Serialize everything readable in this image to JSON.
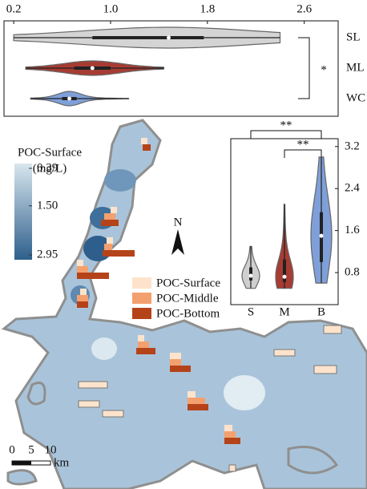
{
  "chart_data": [
    {
      "type": "violin",
      "orientation": "horizontal",
      "categories": [
        "SL",
        "ML",
        "WC"
      ],
      "colors": [
        "#d4d4d4",
        "#a63c33",
        "#7f9fd8"
      ],
      "min": [
        0.2,
        0.3,
        0.34
      ],
      "q1": [
        0.85,
        0.7,
        0.6
      ],
      "median": [
        1.48,
        0.85,
        0.66
      ],
      "q3": [
        1.77,
        1.0,
        0.72
      ],
      "max": [
        2.4,
        1.44,
        1.15
      ],
      "xlim": [
        0.12,
        2.88
      ],
      "xticks": [
        0.2,
        {
          "value": 1,
          "label": "1.0"
        },
        1.8,
        2.6
      ],
      "significance": [
        "*"
      ]
    },
    {
      "type": "violin",
      "orientation": "vertical",
      "categories": [
        "S",
        "M",
        "B"
      ],
      "colors": [
        "#cfcfcf",
        "#a63c33",
        "#7f9fd8"
      ],
      "min": [
        0.5,
        0.5,
        0.6
      ],
      "q1": [
        0.65,
        0.62,
        1.0
      ],
      "median": [
        0.74,
        0.72,
        1.5
      ],
      "q3": [
        0.9,
        1.05,
        1.95
      ],
      "max": [
        1.3,
        2.1,
        3.0
      ],
      "ylim": [
        0.19,
        3.35
      ],
      "yticks": [
        0.8,
        1.6,
        2.4,
        3.2
      ],
      "significance": [
        "**",
        "**"
      ]
    }
  ],
  "map": {
    "colorbar": {
      "title": "POC-Surface",
      "unit": "(mg/L)",
      "lim": [
        0.39,
        2.95
      ],
      "ticks": [
        0.39,
        {
          "value": 1.5,
          "label": "1.50"
        },
        2.95
      ],
      "colors": [
        "#d8e6ee",
        "#2e5f8c"
      ]
    },
    "legend": [
      {
        "name": "POC-Surface",
        "color": "#fde3cc"
      },
      {
        "name": "POC-Middle",
        "color": "#f4a06e"
      },
      {
        "name": "POC-Bottom",
        "color": "#b5431a"
      }
    ],
    "north": "N",
    "scale": {
      "ticks": [
        "0",
        "5",
        "10"
      ],
      "unit": "km"
    }
  }
}
